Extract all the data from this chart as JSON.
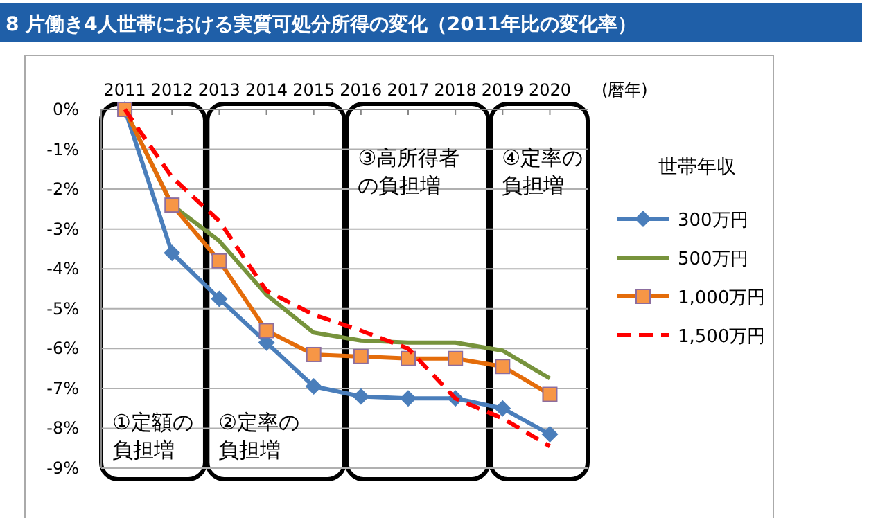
{
  "chart_data": {
    "type": "line",
    "title": "8 片働き4人世帯における実質可処分所得の変化（2011年比の変化率）",
    "xlabel": "(暦年)",
    "legend_title": "世帯年収",
    "legend": "right",
    "grid": "y",
    "x": [
      2011,
      2012,
      2013,
      2014,
      2015,
      2016,
      2017,
      2018,
      2019,
      2020
    ],
    "xlim": [
      2010.5,
      2020.8
    ],
    "xticks": [
      2011,
      2012,
      2013,
      2014,
      2015,
      2016,
      2017,
      2018,
      2019,
      2020
    ],
    "ylim": [
      -9,
      0
    ],
    "yticks": [
      {
        "value": 0,
        "label": "0%"
      },
      {
        "value": -1,
        "label": "-1%"
      },
      {
        "value": -2,
        "label": "-2%"
      },
      {
        "value": -3,
        "label": "-3%"
      },
      {
        "value": -4,
        "label": "-4%"
      },
      {
        "value": -5,
        "label": "-5%"
      },
      {
        "value": -6,
        "label": "-6%"
      },
      {
        "value": -7,
        "label": "-7%"
      },
      {
        "value": -8,
        "label": "-8%"
      },
      {
        "value": -9,
        "label": "-9%"
      }
    ],
    "series": [
      {
        "name": "300万円",
        "color": "#4a7ebb",
        "marker": "diamond",
        "line_style": "solid",
        "values": [
          0,
          -3.6,
          -4.75,
          -5.85,
          -6.95,
          -7.2,
          -7.25,
          -7.25,
          -7.5,
          -8.15
        ]
      },
      {
        "name": "500万円",
        "color": "#77933c",
        "marker": "none",
        "line_style": "solid",
        "values": [
          0,
          -2.4,
          -3.3,
          -4.65,
          -5.6,
          -5.8,
          -5.85,
          -5.85,
          -6.05,
          -6.75
        ]
      },
      {
        "name": "1,000万円",
        "color": "#e46c0a",
        "marker": "square",
        "line_style": "solid",
        "values": [
          0,
          -2.4,
          -3.8,
          -5.55,
          -6.15,
          -6.2,
          -6.25,
          -6.25,
          -6.45,
          -7.15
        ]
      },
      {
        "name": "1,500万円",
        "color": "#ff0000",
        "marker": "none",
        "line_style": "dashed",
        "values": [
          0,
          -1.7,
          -2.8,
          -4.55,
          -5.15,
          -5.55,
          -6.0,
          -7.25,
          -7.75,
          -8.45
        ]
      }
    ],
    "bands": [
      {
        "axis": "x",
        "from": 2010.5,
        "to": 2012.7,
        "label": "①定額の負担増",
        "color": "#ffffff"
      },
      {
        "axis": "x",
        "from": 2012.75,
        "to": 2015.65,
        "label": "②定率の負担増",
        "color": "#ffffff"
      },
      {
        "axis": "x",
        "from": 2015.7,
        "to": 2018.7,
        "label": "③高所得者の負担増",
        "color": "#ffffff"
      },
      {
        "axis": "x",
        "from": 2018.75,
        "to": 2020.8,
        "label": "④定率の負担増",
        "color": "#ffffff"
      }
    ]
  }
}
